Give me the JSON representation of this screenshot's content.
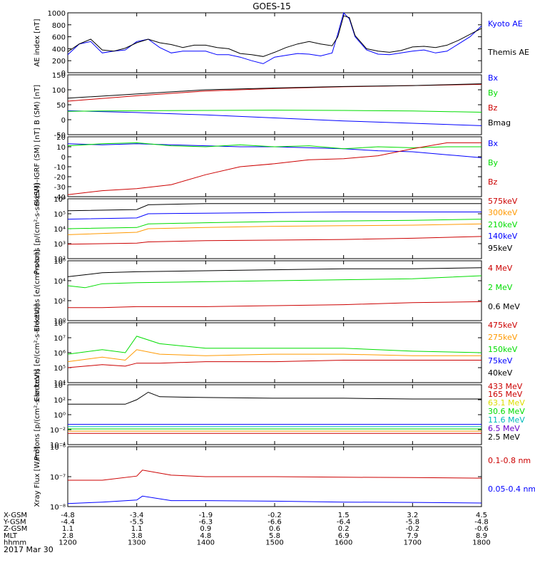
{
  "title": "GOES-15",
  "date": "2017 Mar 30",
  "time_axis": {
    "tick_labels": [
      "1200",
      "1300",
      "1400",
      "1500",
      "1600",
      "1700",
      "1800"
    ],
    "rows": [
      {
        "label": "X-GSM",
        "values": [
          "-4.8",
          "-3.4",
          "-1.9",
          "-0.2",
          "1.5",
          "3.2",
          "4.5"
        ]
      },
      {
        "label": "Y-GSM",
        "values": [
          "-4.4",
          "-5.5",
          "-6.3",
          "-6.6",
          "-6.4",
          "-5.8",
          "-4.8"
        ]
      },
      {
        "label": "Z-GSM",
        "values": [
          "1.1",
          "1.1",
          "0.9",
          "0.6",
          "0.2",
          "-0.2",
          "-0.6"
        ]
      },
      {
        "label": "MLT",
        "values": [
          "2.8",
          "3.8",
          "4.8",
          "5.8",
          "6.9",
          "7.9",
          "8.9"
        ]
      },
      {
        "label": "hhmm",
        "values": [
          "1200",
          "1300",
          "1400",
          "1500",
          "1600",
          "1700",
          "1800"
        ]
      }
    ]
  },
  "colors": {
    "black": "#000000",
    "blue": "#0000ff",
    "green": "#00dd00",
    "red": "#cc0000",
    "orange": "#ff9900",
    "yellow": "#dddd00",
    "cyan": "#00bbbb",
    "purple": "#6600cc"
  },
  "chart_data": [
    {
      "type": "line",
      "ylabel": "AE index [nT]",
      "ylim": [
        0,
        1000
      ],
      "scale": "linear",
      "ytick_labels": [
        "1000",
        "800",
        "600",
        "400",
        "200",
        "0"
      ],
      "legend": [
        "Kyoto AE",
        "Themis AE"
      ],
      "x": [
        1200,
        1210,
        1220,
        1230,
        1240,
        1250,
        1300,
        1310,
        1320,
        1330,
        1340,
        1350,
        1400,
        1410,
        1420,
        1430,
        1440,
        1450,
        1500,
        1510,
        1520,
        1530,
        1540,
        1550,
        1555,
        1600,
        1605,
        1610,
        1620,
        1630,
        1640,
        1650,
        1700,
        1710,
        1720,
        1730,
        1740,
        1750,
        1800
      ],
      "series": [
        {
          "name": "Kyoto AE",
          "color": "blue",
          "values": [
            300,
            480,
            520,
            330,
            360,
            380,
            520,
            560,
            420,
            330,
            360,
            360,
            360,
            300,
            300,
            260,
            200,
            150,
            260,
            290,
            320,
            310,
            280,
            330,
            650,
            1000,
            900,
            600,
            380,
            310,
            300,
            330,
            360,
            380,
            330,
            360,
            480,
            600,
            780
          ]
        },
        {
          "name": "Themis AE",
          "color": "black",
          "values": [
            350,
            480,
            560,
            380,
            360,
            410,
            500,
            560,
            500,
            470,
            420,
            460,
            460,
            420,
            400,
            320,
            300,
            270,
            340,
            420,
            480,
            520,
            480,
            450,
            600,
            950,
            920,
            620,
            400,
            360,
            340,
            370,
            430,
            440,
            420,
            460,
            540,
            640,
            740
          ]
        }
      ]
    },
    {
      "type": "line",
      "ylabel": "B (SM) [nT]",
      "ylim": [
        -50,
        150
      ],
      "scale": "linear",
      "ytick_labels": [
        "150",
        "100",
        "50",
        "0",
        "-50"
      ],
      "legend": [
        "Bx",
        "By",
        "Bz",
        "Bmag"
      ],
      "x": [
        1200,
        1300,
        1400,
        1500,
        1600,
        1700,
        1800
      ],
      "series": [
        {
          "name": "Bx",
          "color": "blue",
          "values": [
            30,
            24,
            16,
            6,
            -4,
            -12,
            -20
          ]
        },
        {
          "name": "By",
          "color": "green",
          "values": [
            28,
            30,
            31,
            32,
            31,
            29,
            25
          ]
        },
        {
          "name": "Bz",
          "color": "red",
          "values": [
            62,
            80,
            96,
            104,
            110,
            114,
            118
          ]
        },
        {
          "name": "Bmag",
          "color": "black",
          "values": [
            72,
            86,
            100,
            106,
            111,
            114,
            120
          ]
        }
      ]
    },
    {
      "type": "line",
      "ylabel": "B (SM)-IGRF (SM) [nT]",
      "ylim": [
        -40,
        20
      ],
      "scale": "linear",
      "ytick_labels": [
        "20",
        "10",
        "0",
        "-10",
        "-20",
        "-30",
        "-40"
      ],
      "legend": [
        "Bx",
        "By",
        "Bz"
      ],
      "x": [
        1200,
        1230,
        1300,
        1330,
        1400,
        1430,
        1500,
        1530,
        1600,
        1630,
        1700,
        1730,
        1800
      ],
      "series": [
        {
          "name": "Bx",
          "color": "blue",
          "values": [
            13,
            12,
            13,
            12,
            11,
            10,
            10,
            9,
            8,
            6,
            5,
            2,
            -1
          ]
        },
        {
          "name": "By",
          "color": "green",
          "values": [
            11,
            13,
            14,
            11,
            10,
            12,
            10,
            11,
            8,
            10,
            9,
            10,
            10
          ]
        },
        {
          "name": "Bz",
          "color": "red",
          "values": [
            -38,
            -34,
            -32,
            -28,
            -18,
            -10,
            -7,
            -3,
            -2,
            1,
            8,
            14,
            14
          ]
        }
      ]
    },
    {
      "type": "line",
      "ylabel": "Protons [p/(cm²-s-sr-keV)]",
      "ylim": [
        1,
        6
      ],
      "scale": "log",
      "ytick_labels": [
        "10⁶",
        "10⁵",
        "10⁴",
        "10³",
        "10²"
      ],
      "legend": [
        "575keV",
        "300keV",
        "210keV",
        "140keV",
        "95keV"
      ],
      "x": [
        1200,
        1300,
        1310,
        1400,
        1500,
        1600,
        1700,
        1800
      ],
      "series": [
        {
          "name": "575keV",
          "color": "black",
          "values": [
            5.0,
            5.1,
            5.5,
            5.6,
            5.6,
            5.6,
            5.6,
            5.6
          ]
        },
        {
          "name": "300keV",
          "color": "blue",
          "values": [
            4.3,
            4.4,
            4.75,
            4.8,
            4.85,
            4.9,
            4.9,
            4.9
          ]
        },
        {
          "name": "210keV",
          "color": "green",
          "values": [
            3.5,
            3.6,
            3.9,
            4.0,
            4.1,
            4.15,
            4.2,
            4.3
          ]
        },
        {
          "name": "140keV",
          "color": "orange",
          "values": [
            3.0,
            3.2,
            3.5,
            3.6,
            3.7,
            3.75,
            3.8,
            3.9
          ]
        },
        {
          "name": "95keV",
          "color": "red",
          "values": [
            2.2,
            2.3,
            2.4,
            2.5,
            2.55,
            2.6,
            2.7,
            2.85
          ]
        }
      ]
    },
    {
      "type": "line",
      "ylabel": "Electrons [e/(cm²-s-sr)]",
      "ylim": [
        0,
        6
      ],
      "scale": "log",
      "ytick_labels": [
        "10⁶",
        "10⁴",
        "10²",
        "10⁰"
      ],
      "legend": [
        "4 MeV",
        "2 MeV",
        "0.6 MeV"
      ],
      "x": [
        1200,
        1215,
        1230,
        1300,
        1400,
        1500,
        1600,
        1700,
        1800
      ],
      "series": [
        {
          "name": "4 MeV",
          "color": "black",
          "values": [
            4.4,
            4.6,
            4.8,
            4.9,
            5.0,
            5.1,
            5.2,
            5.2,
            5.3
          ]
        },
        {
          "name": "2 MeV",
          "color": "green",
          "values": [
            3.5,
            3.3,
            3.7,
            3.8,
            3.9,
            4.0,
            4.1,
            4.2,
            4.5
          ]
        },
        {
          "name": "0.6 MeV",
          "color": "red",
          "values": [
            1.3,
            1.3,
            1.3,
            1.4,
            1.4,
            1.5,
            1.6,
            1.8,
            1.9
          ]
        }
      ]
    },
    {
      "type": "line",
      "ylabel": "Electrons [e/(cm²-s-sr-keV)]",
      "ylim": [
        4,
        8
      ],
      "scale": "log",
      "ytick_labels": [
        "10⁸",
        "10⁷",
        "10⁶",
        "10⁵",
        "10⁴"
      ],
      "legend": [
        "475keV",
        "275keV",
        "150keV",
        "75keV",
        "40keV"
      ],
      "x": [
        1200,
        1230,
        1250,
        1300,
        1320,
        1400,
        1500,
        1600,
        1700,
        1800
      ],
      "series": [
        {
          "name": "475keV",
          "color": "green",
          "values": [
            5.9,
            6.2,
            6.0,
            7.1,
            6.6,
            6.3,
            6.3,
            6.3,
            6.1,
            6.0
          ]
        },
        {
          "name": "275keV",
          "color": "orange",
          "values": [
            5.4,
            5.7,
            5.5,
            6.2,
            5.9,
            5.8,
            5.9,
            5.9,
            5.8,
            5.8
          ]
        },
        {
          "name": "150keV",
          "color": "red",
          "values": [
            5.0,
            5.2,
            5.1,
            5.3,
            5.3,
            5.4,
            5.4,
            5.5,
            5.5,
            5.5
          ]
        }
      ]
    },
    {
      "type": "line",
      "ylabel": "Protons [p/(cm²-s-sr-keV)]",
      "ylim": [
        -4,
        4
      ],
      "scale": "log",
      "ytick_labels": [
        "10⁴",
        "10²",
        "10⁰",
        "10⁻²",
        "10⁻⁴"
      ],
      "legend": [
        "433 MeV",
        "165 MeV",
        "63.1 MeV",
        "30.6 MeV",
        "11.6 MeV",
        "6.5 MeV",
        "2.5 MeV"
      ],
      "x": [
        1200,
        1250,
        1300,
        1310,
        1320,
        1400,
        1500,
        1600,
        1700,
        1800
      ],
      "series": [
        {
          "name": "2.5 MeV",
          "color": "black",
          "values": [
            1.4,
            1.4,
            2.0,
            3.0,
            2.4,
            2.3,
            2.2,
            2.2,
            2.1,
            2.1
          ]
        },
        {
          "name": "11.6 MeV",
          "color": "blue",
          "values": [
            -1.3,
            -1.3,
            -1.3,
            -1.3,
            -1.3,
            -1.3,
            -1.3,
            -1.3,
            -1.3,
            -1.3
          ]
        },
        {
          "name": "30.6 MeV",
          "color": "cyan",
          "values": [
            -1.6,
            -1.6,
            -1.6,
            -1.6,
            -1.6,
            -1.6,
            -1.6,
            -1.6,
            -1.6,
            -1.6
          ]
        },
        {
          "name": "63.1 MeV",
          "color": "green",
          "values": [
            -1.9,
            -1.9,
            -1.9,
            -1.9,
            -1.9,
            -1.9,
            -1.9,
            -1.9,
            -1.9,
            -1.9
          ]
        },
        {
          "name": "165 MeV",
          "color": "orange",
          "values": [
            -2.2,
            -2.2,
            -2.2,
            -2.2,
            -2.2,
            -2.2,
            -2.2,
            -2.2,
            -2.2,
            -2.2
          ]
        },
        {
          "name": "433 MeV",
          "color": "red",
          "values": [
            -2.5,
            -2.5,
            -2.5,
            -2.5,
            -2.5,
            -2.5,
            -2.5,
            -2.5,
            -2.5,
            -2.5
          ]
        }
      ]
    },
    {
      "type": "line",
      "ylabel": "Xray Flux [W/m²]",
      "ylim": [
        -8,
        -6
      ],
      "scale": "log",
      "ytick_labels": [
        "10⁻⁶",
        "10⁻⁷",
        "10⁻⁸"
      ],
      "legend": [
        "0.1-0.8 nm",
        "0.05-0.4 nm"
      ],
      "x": [
        1200,
        1230,
        1300,
        1305,
        1330,
        1400,
        1500,
        1600,
        1700,
        1800
      ],
      "series": [
        {
          "name": "0.1-0.8 nm",
          "color": "red",
          "values": [
            -7.12,
            -7.12,
            -6.98,
            -6.78,
            -6.95,
            -7.0,
            -7.0,
            -7.02,
            -7.03,
            -7.05
          ]
        },
        {
          "name": "0.05-0.4 nm",
          "color": "blue",
          "values": [
            -7.9,
            -7.85,
            -7.78,
            -7.65,
            -7.8,
            -7.8,
            -7.82,
            -7.85,
            -7.86,
            -7.88
          ]
        }
      ]
    }
  ]
}
